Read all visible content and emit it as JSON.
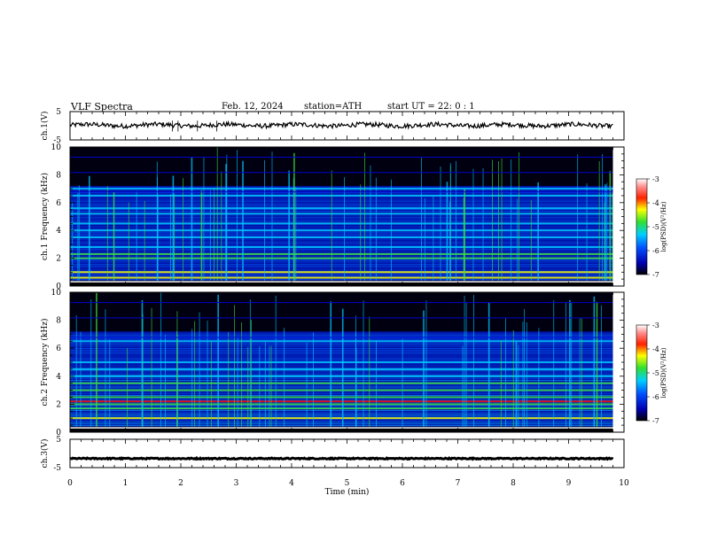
{
  "header": {
    "title": "VLF Spectra",
    "date": "Feb. 12, 2024",
    "station": "station=ATH",
    "start_ut": "start UT = 22: 0 : 1"
  },
  "chart_data": [
    {
      "type": "line",
      "panel": "ch1-waveform",
      "ylabel": "ch.1(V)",
      "yticks": [
        "5",
        "-5"
      ],
      "ylim": [
        -5,
        5
      ],
      "xlim": [
        0,
        10
      ],
      "series": [
        {
          "approx_level_v": 0.2,
          "note_values": []
        }
      ]
    },
    {
      "type": "heatmap",
      "panel": "ch1-spectrogram",
      "ylabel": "ch.1 Frequency (kHz)",
      "yticks": [
        "0",
        "2",
        "4",
        "6",
        "8",
        "10"
      ],
      "ylim": [
        0,
        10
      ],
      "xlim": [
        0,
        10
      ],
      "data_end_min": 9.8,
      "colorbar": {
        "label": "log(PSD)(V²/Hz)",
        "ticks": [
          "-3",
          "-4",
          "-5",
          "-6",
          "-7"
        ],
        "range": [
          -7,
          -3
        ]
      },
      "bands_khz": [
        0.3,
        0.6,
        1.0,
        2.0,
        2.3,
        2.8,
        3.5,
        4.0,
        4.5,
        5.2,
        5.6,
        6.5,
        7.0
      ]
    },
    {
      "type": "heatmap",
      "panel": "ch2-spectrogram",
      "ylabel": "ch.2 Frequency (kHz)",
      "yticks": [
        "0",
        "2",
        "4",
        "6",
        "8",
        "10"
      ],
      "ylim": [
        0,
        10
      ],
      "xlim": [
        0,
        10
      ],
      "data_end_min": 9.8,
      "colorbar": {
        "label": "log(PSD)(V²/Hz)",
        "ticks": [
          "-3",
          "-4",
          "-5",
          "-6",
          "-7"
        ],
        "range": [
          -7,
          -3
        ]
      },
      "bands_khz": [
        0.3,
        1.0,
        1.7,
        2.0,
        2.2,
        2.5,
        3.0,
        3.5,
        4.0,
        4.5,
        5.0,
        6.5
      ]
    },
    {
      "type": "line",
      "panel": "ch3-waveform",
      "ylabel": "ch.3(V)",
      "yticks": [
        "5",
        "-5"
      ],
      "ylim": [
        -5,
        5
      ],
      "xlim": [
        0,
        10
      ],
      "series": [
        {
          "approx_level_v": -1.8
        }
      ]
    }
  ],
  "xaxis": {
    "label": "Time (min)",
    "ticks": [
      "0",
      "1",
      "2",
      "3",
      "4",
      "5",
      "6",
      "7",
      "8",
      "9",
      "10"
    ]
  },
  "colors": {
    "spectrum_low": "#000000",
    "spectrum_blue": "#0000cc",
    "spectrum_cyan": "#00c8ff",
    "spectrum_green": "#40e040",
    "spectrum_yellow": "#ffff00",
    "spectrum_red": "#ff0000",
    "spectrum_white": "#ffffff"
  }
}
